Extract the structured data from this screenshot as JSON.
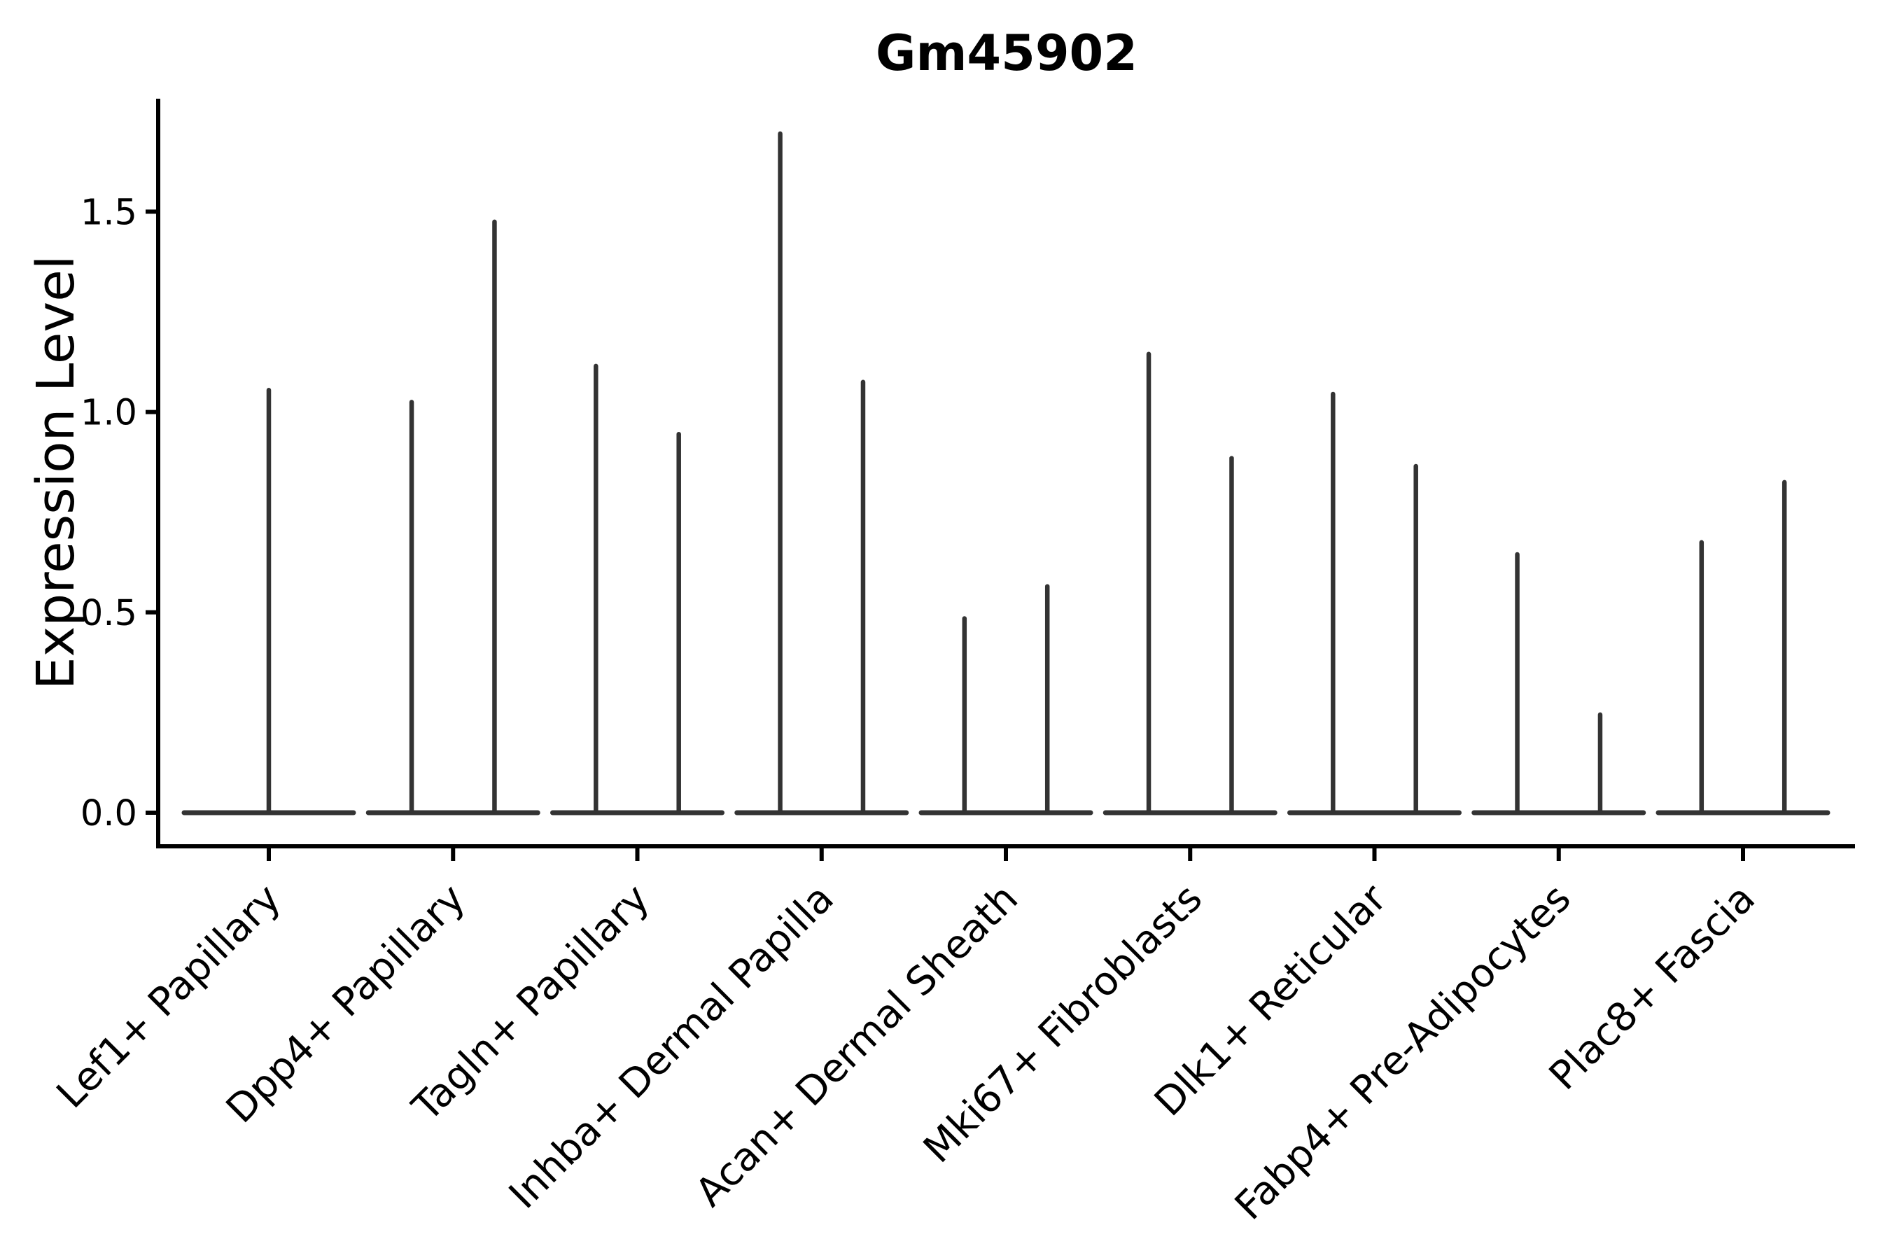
{
  "chart_data": {
    "type": "violin",
    "title": "Gm45902",
    "ylabel": "Expression Level",
    "xlabel": "",
    "yticks": [
      0.0,
      0.5,
      1.0,
      1.5
    ],
    "ylim": [
      0.0,
      1.78
    ],
    "grid": false,
    "legend": false,
    "style_notes": "sparse expression violins: wide flat base at 0 with thin vertical spikes up to the max expression; categories 2-9 show two spikes (two violins side by side), category 1 a single centered spike",
    "colors": {
      "violin_line": "#333333",
      "axis": "#000000",
      "background": "#ffffff"
    },
    "categories": [
      "Lef1+ Papillary",
      "Dpp4+ Papillary",
      "Tagln+ Papillary",
      "Inhba+ Dermal Papilla",
      "Acan+ Dermal Sheath",
      "Mki67+ Fibroblasts",
      "Dlk1+ Reticular",
      "Fabp4+ Pre-Adipocytes",
      "Plac8+ Fascia"
    ],
    "violins": [
      {
        "category": "Lef1+ Papillary",
        "baseline_value": 0.0,
        "spike_max_values": [
          1.06
        ]
      },
      {
        "category": "Dpp4+ Papillary",
        "baseline_value": 0.0,
        "spike_max_values": [
          1.03,
          1.48
        ]
      },
      {
        "category": "Tagln+ Papillary",
        "baseline_value": 0.0,
        "spike_max_values": [
          1.12,
          0.95
        ]
      },
      {
        "category": "Inhba+ Dermal Papilla",
        "baseline_value": 0.0,
        "spike_max_values": [
          1.7,
          1.08
        ]
      },
      {
        "category": "Acan+ Dermal Sheath",
        "baseline_value": 0.0,
        "spike_max_values": [
          0.49,
          0.57
        ]
      },
      {
        "category": "Mki67+ Fibroblasts",
        "baseline_value": 0.0,
        "spike_max_values": [
          1.15,
          0.89
        ]
      },
      {
        "category": "Dlk1+ Reticular",
        "baseline_value": 0.0,
        "spike_max_values": [
          1.05,
          0.87
        ]
      },
      {
        "category": "Fabp4+ Pre-Adipocytes",
        "baseline_value": 0.0,
        "spike_max_values": [
          0.65,
          0.25
        ]
      },
      {
        "category": "Plac8+ Fascia",
        "baseline_value": 0.0,
        "spike_max_values": [
          0.68,
          0.83
        ]
      }
    ]
  }
}
